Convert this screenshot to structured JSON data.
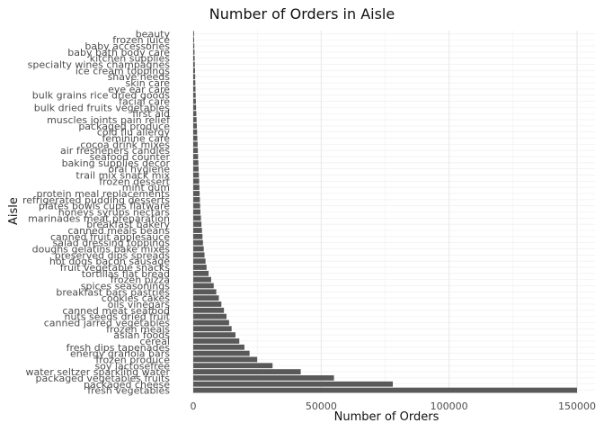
{
  "chart_data": {
    "type": "bar",
    "orientation": "horizontal",
    "title": "Number of Orders in Aisle",
    "xlabel": "Number of Orders",
    "ylabel": "Aisle",
    "xlim": [
      0,
      150000
    ],
    "xticks": [
      0,
      50000,
      100000,
      150000
    ],
    "xtick_labels": [
      "0",
      "50000",
      "100000",
      "150000"
    ],
    "grid": true,
    "categories": [
      "beauty",
      "frozen juice",
      "baby accessories",
      "baby bath body care",
      "kitchen supplies",
      "specialty wines champagnes",
      "ice cream toppings",
      "shave needs",
      "skin care",
      "eye ear care",
      "bulk grains rice dried goods",
      "facial care",
      "bulk dried fruits vegetables",
      "first aid",
      "muscles joints pain relief",
      "packaged produce",
      "cold flu allergy",
      "feminine care",
      "cocoa drink mixes",
      "air fresheners candles",
      "seafood counter",
      "baking supplies decor",
      "oral hygiene",
      "trail mix snack mix",
      "frozen dessert",
      "mint gum",
      "protein meal replacements",
      "refrigerated pudding desserts",
      "plates bowls cups flatware",
      "honeys syrups nectars",
      "marinades meat preparation",
      "breakfast bakery",
      "canned meals beans",
      "canned fruit applesauce",
      "salad dressing toppings",
      "doughs gelatins bake mixes",
      "preserved dips spreads",
      "hot dogs bacon sausage",
      "fruit vegetable snacks",
      "tortillas flat bread",
      "frozen pizza",
      "spices seasonings",
      "breakfast bars pastries",
      "cookies cakes",
      "oils vinegars",
      "canned meat seafood",
      "nuts seeds dried fruit",
      "canned jarred vegetables",
      "frozen meals",
      "asian foods",
      "cereal",
      "fresh dips tapenades",
      "energy granola bars",
      "frozen produce",
      "soy lactosefree",
      "water seltzer sparkling water",
      "packaged vegetables fruits",
      "packaged cheese",
      "fresh vegetables"
    ],
    "values": [
      300,
      350,
      420,
      500,
      560,
      620,
      700,
      760,
      820,
      880,
      950,
      1020,
      1100,
      1200,
      1300,
      1400,
      1500,
      1600,
      1700,
      1800,
      1900,
      2000,
      2100,
      2200,
      2300,
      2400,
      2500,
      2600,
      2700,
      2800,
      3000,
      3200,
      3400,
      3600,
      3800,
      4100,
      4400,
      4800,
      5200,
      6000,
      7000,
      8000,
      9000,
      10000,
      11000,
      12000,
      13000,
      14000,
      15000,
      16500,
      18000,
      20000,
      22000,
      25000,
      31000,
      42000,
      55000,
      78000,
      150000
    ]
  }
}
